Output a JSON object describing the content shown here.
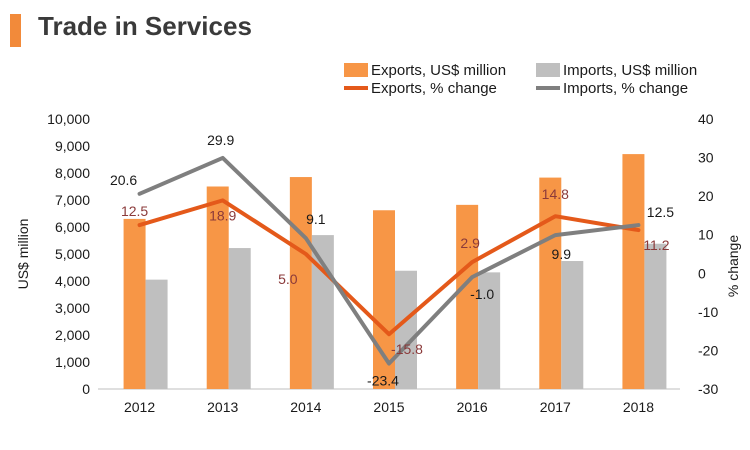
{
  "header": {
    "title": "Trade in Services"
  },
  "chart_data": {
    "type": "bar+line",
    "categories": [
      "2012",
      "2013",
      "2014",
      "2015",
      "2016",
      "2017",
      "2018"
    ],
    "bar_series": [
      {
        "name": "Exports, US$ million",
        "color": "#f79646",
        "values": [
          6300,
          7500,
          7850,
          6620,
          6820,
          7830,
          8700
        ]
      },
      {
        "name": "Imports, US$ million",
        "color": "#bfbfbf",
        "values": [
          4050,
          5220,
          5700,
          4380,
          4320,
          4740,
          5380
        ]
      }
    ],
    "line_series": [
      {
        "name": "Exports, % change",
        "color": "#e4591a",
        "values": [
          12.5,
          18.9,
          5.0,
          -15.8,
          2.9,
          14.8,
          11.2
        ],
        "labels": [
          "12.5",
          "18.9",
          "5.0",
          "-15.8",
          "2.9",
          "14.8",
          "11.2"
        ],
        "label_color": "#8b3a3a"
      },
      {
        "name": "Imports, % change",
        "color": "#7f7f7f",
        "values": [
          20.6,
          29.9,
          9.1,
          -23.4,
          -1.0,
          9.9,
          12.5
        ],
        "labels": [
          "20.6",
          "29.9",
          "9.1",
          "-23.4",
          "-1.0",
          "9.9",
          "12.5"
        ],
        "label_color": "#1a1a1a"
      }
    ],
    "left_axis": {
      "label": "US$ million",
      "min": 0,
      "max": 10000,
      "ticks": [
        "0",
        "1,000",
        "2,000",
        "3,000",
        "4,000",
        "5,000",
        "6,000",
        "7,000",
        "8,000",
        "9,000",
        "10,000"
      ]
    },
    "right_axis": {
      "label": "% change",
      "min": -30,
      "max": 40,
      "ticks": [
        "-30",
        "-20",
        "-10",
        "0",
        "10",
        "20",
        "30",
        "40"
      ]
    },
    "legend_position": "top-right",
    "grid": false
  }
}
